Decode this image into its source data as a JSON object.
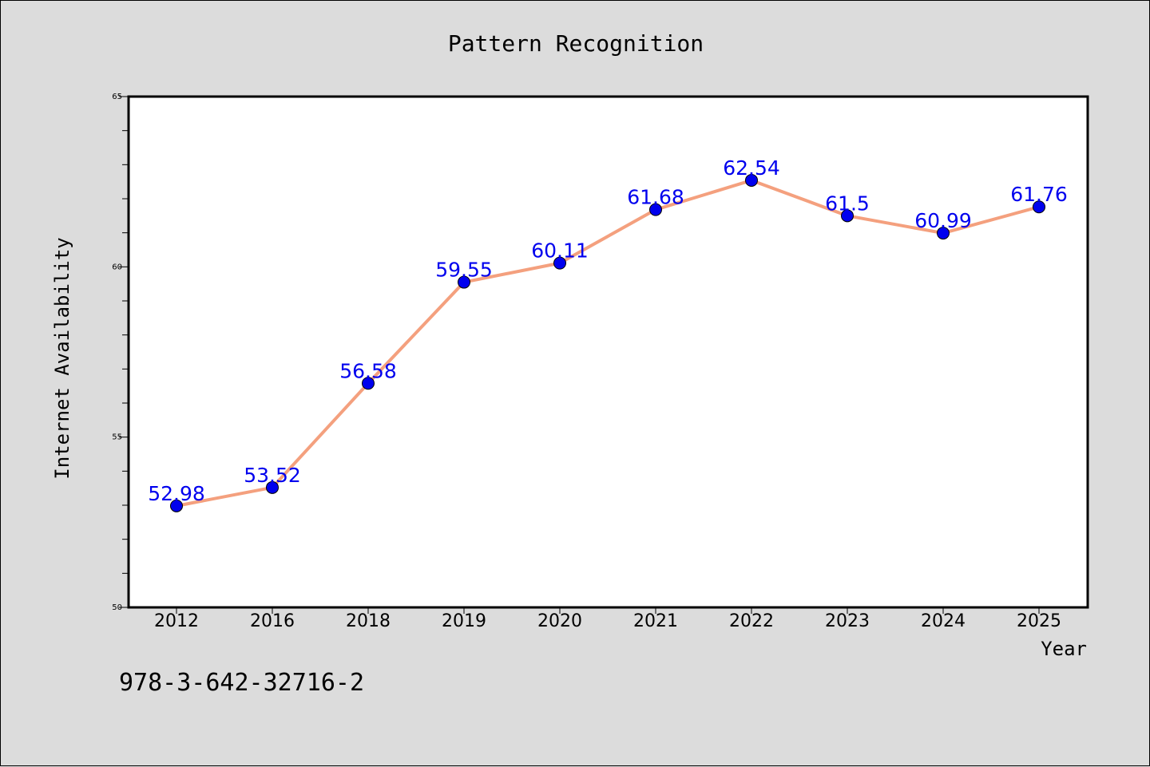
{
  "chart_data": {
    "type": "line",
    "title": "Pattern Recognition",
    "xlabel": "Year",
    "ylabel": "Internet Availability",
    "categories": [
      "2012",
      "2016",
      "2018",
      "2019",
      "2020",
      "2021",
      "2022",
      "2023",
      "2024",
      "2025"
    ],
    "series": [
      {
        "values": [
          52.98,
          53.52,
          56.58,
          59.55,
          60.11,
          61.68,
          62.54,
          61.5,
          60.99,
          61.76
        ],
        "labels": [
          "52.98",
          "53.52",
          "56.58",
          "59.55",
          "60.11",
          "61.68",
          "62.54",
          "61.5",
          "60.99",
          "61.76"
        ]
      }
    ],
    "ylim": [
      50,
      65
    ],
    "yticks": [
      "50",
      "55",
      "60",
      "65"
    ],
    "grid": false,
    "colors": {
      "line": "#f4a07e",
      "marker": "#0000ee",
      "label": "#0000ee",
      "background": "#dcdcdc",
      "plot_background": "#ffffff"
    }
  },
  "footnote": "978-3-642-32716-2"
}
